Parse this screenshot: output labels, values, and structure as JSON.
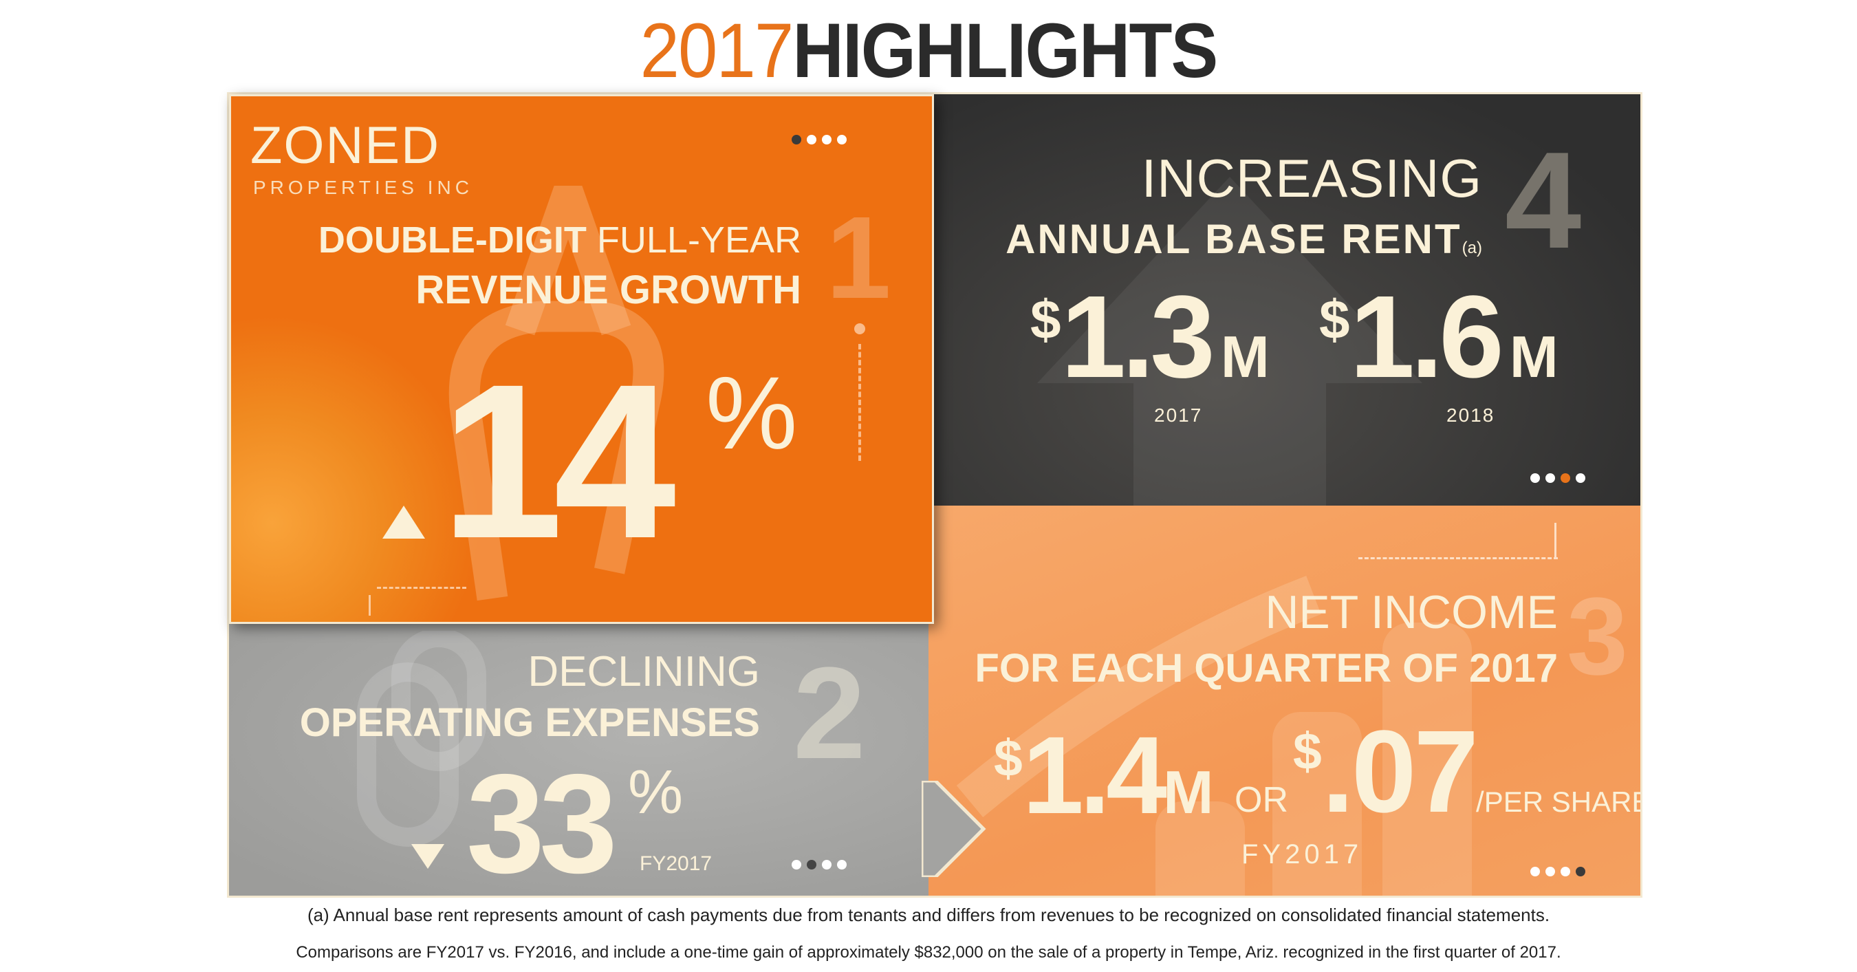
{
  "title": {
    "year": "2017",
    "word": "HIGHLIGHTS"
  },
  "colors": {
    "accent": "#e8731a",
    "panel_orange": "#ee7011",
    "panel_light_orange": "#f49855",
    "panel_dark": "#353535",
    "panel_gray": "#a8a8a8",
    "text_cream": "#fbf1d8"
  },
  "logo": {
    "name": "ZONED",
    "sub": "PROPERTIES INC"
  },
  "highlight1": {
    "number": "1",
    "heading_bold": "DOUBLE-DIGIT",
    "heading_light": "FULL-YEAR",
    "heading_line2": "REVENUE GROWTH",
    "value": "14",
    "unit": "%",
    "direction": "up",
    "icon": "triangle-up-icon",
    "active_dot": 1
  },
  "highlight2": {
    "number": "2",
    "heading_line1": "DECLINING",
    "heading_line2": "OPERATING EXPENSES",
    "value": "33",
    "unit": "%",
    "period": "FY2017",
    "direction": "down",
    "icon": "triangle-down-icon",
    "active_dot": 2
  },
  "highlight3": {
    "number": "3",
    "heading_line1": "NET INCOME",
    "heading_line2": "FOR EACH QUARTER OF 2017",
    "amount_currency": "$",
    "amount": "1.4",
    "amount_unit": "M",
    "or": "OR",
    "per_share_currency": "$",
    "per_share": ".07",
    "per_share_unit": "/PER SHARE",
    "period": "FY2017",
    "active_dot": 4
  },
  "highlight4": {
    "number": "4",
    "heading_line1": "INCREASING",
    "heading_line2": "ANNUAL BASE RENT",
    "footnote_ref": "(a)",
    "values": [
      {
        "currency": "$",
        "amount": "1.3",
        "unit": "M",
        "year": "2017"
      },
      {
        "currency": "$",
        "amount": "1.6",
        "unit": "M",
        "year": "2018"
      }
    ],
    "active_dot": 3
  },
  "footnotes": [
    "(a) Annual base rent represents amount of cash payments due from tenants and differs from revenues to be recognized on consolidated financial statements.",
    "Comparisons are FY2017 vs. FY2016, and include a one-time gain of approximately $832,000 on the sale of a property in Tempe, Ariz. recognized in the first quarter of 2017."
  ]
}
